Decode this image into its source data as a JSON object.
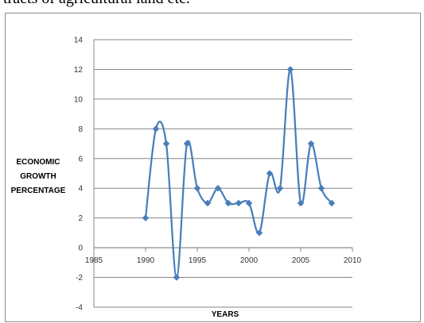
{
  "header_text": "tracts of agricultural land etc.",
  "colors": {
    "series": "#4a7ebb",
    "grid": "#868686",
    "axis": "#868686"
  },
  "chart_data": {
    "type": "line",
    "title": "",
    "xlabel": "YEARS",
    "ylabel_lines": [
      "ECONOMIC",
      "GROWTH",
      "PERCENTAGE"
    ],
    "xlim": [
      1985,
      2010
    ],
    "ylim": [
      -4,
      14
    ],
    "x_ticks": [
      1985,
      1990,
      1995,
      2000,
      2005,
      2010
    ],
    "y_ticks": [
      -4,
      -2,
      0,
      2,
      4,
      6,
      8,
      10,
      12,
      14
    ],
    "grid": "horizontal",
    "legend": "none",
    "smooth": true,
    "marker": "diamond",
    "series": [
      {
        "x": [
          1990,
          1991,
          1992,
          1993,
          1994,
          1995,
          1996,
          1997,
          1998,
          1999,
          2000,
          2001,
          2002,
          2003,
          2004,
          2005,
          2006,
          2007,
          2008
        ],
        "values": [
          2,
          8,
          7,
          -2,
          7,
          4,
          3,
          4,
          3,
          3,
          3,
          1,
          5,
          4,
          12,
          3,
          7,
          4,
          3
        ]
      }
    ]
  }
}
